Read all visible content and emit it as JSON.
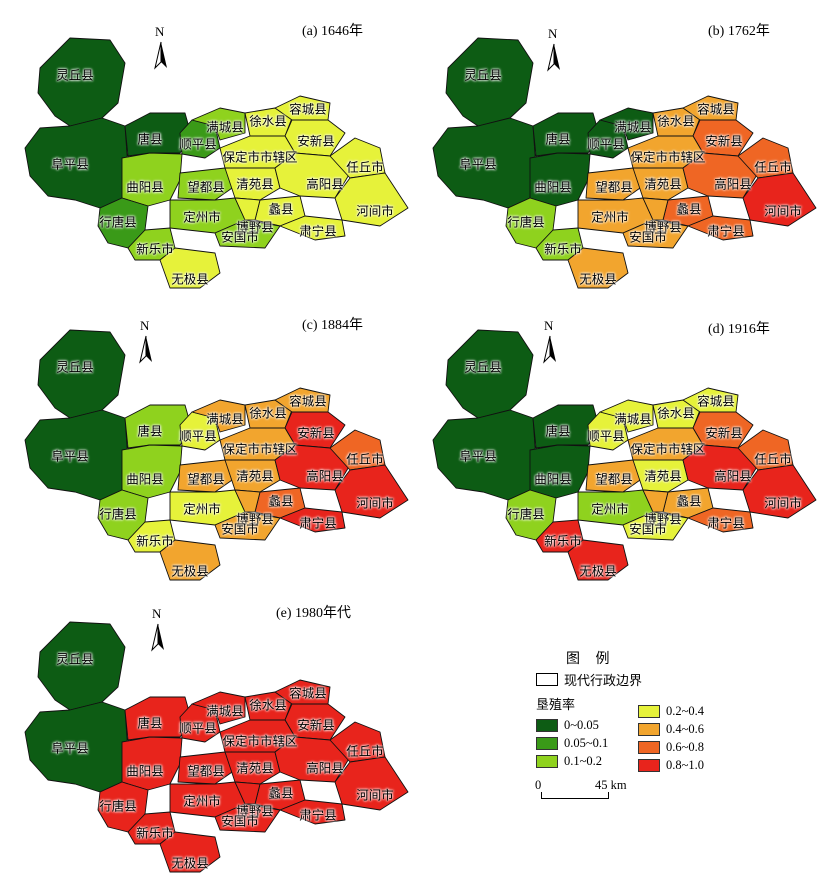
{
  "colors": {
    "c0": "#0d5c14",
    "c1": "#3a9a18",
    "c2": "#8fd21e",
    "c3": "#e6f23a",
    "c4": "#f2a52e",
    "c5": "#ef6624",
    "c6": "#e8241c"
  },
  "north_letter": "N",
  "panels": [
    {
      "title": "(a) 1646年",
      "regions": {
        "lingqiu": 0,
        "fuping": 0,
        "tang": 0,
        "quyang": 2,
        "xingtang": 1,
        "xinle": 2,
        "wuji": 3,
        "wangdu": 2,
        "dingzhou": 2,
        "shunping": 1,
        "mancheng": 2,
        "baoding": 3,
        "qingyuan": 3,
        "anguo": 2,
        "boye": 3,
        "lixian": 3,
        "xushui": 3,
        "rongcheng": 3,
        "anxin": 3,
        "gaoyang": 3,
        "renqiu": 3,
        "suning": 3,
        "hejian": 3
      }
    },
    {
      "title": "(b) 1762年",
      "regions": {
        "lingqiu": 0,
        "fuping": 0,
        "tang": 0,
        "quyang": 0,
        "xingtang": 2,
        "xinle": 2,
        "wuji": 4,
        "wangdu": 4,
        "dingzhou": 4,
        "shunping": 0,
        "mancheng": 0,
        "baoding": 4,
        "qingyuan": 4,
        "anguo": 4,
        "boye": 4,
        "lixian": 5,
        "xushui": 4,
        "rongcheng": 4,
        "anxin": 5,
        "gaoyang": 5,
        "renqiu": 5,
        "suning": 5,
        "hejian": 6
      }
    },
    {
      "title": "(c) 1884年",
      "regions": {
        "lingqiu": 0,
        "fuping": 0,
        "tang": 2,
        "quyang": 2,
        "xingtang": 2,
        "xinle": 3,
        "wuji": 4,
        "wangdu": 4,
        "dingzhou": 3,
        "shunping": 3,
        "mancheng": 4,
        "baoding": 4,
        "qingyuan": 4,
        "anguo": 4,
        "boye": 4,
        "lixian": 5,
        "xushui": 4,
        "rongcheng": 4,
        "anxin": 6,
        "gaoyang": 6,
        "renqiu": 5,
        "suning": 6,
        "hejian": 6
      }
    },
    {
      "title": "(d) 1916年",
      "regions": {
        "lingqiu": 0,
        "fuping": 0,
        "tang": 0,
        "quyang": 0,
        "xingtang": 2,
        "xinle": 6,
        "wuji": 6,
        "wangdu": 4,
        "dingzhou": 2,
        "shunping": 3,
        "mancheng": 3,
        "baoding": 4,
        "qingyuan": 3,
        "anguo": 3,
        "boye": 4,
        "lixian": 4,
        "xushui": 3,
        "rongcheng": 3,
        "anxin": 5,
        "gaoyang": 6,
        "renqiu": 5,
        "suning": 5,
        "hejian": 6
      }
    },
    {
      "title": "(e) 1980年代",
      "regions": {
        "lingqiu": 0,
        "fuping": 0,
        "tang": 6,
        "quyang": 6,
        "xingtang": 6,
        "xinle": 6,
        "wuji": 6,
        "wangdu": 6,
        "dingzhou": 6,
        "shunping": 6,
        "mancheng": 6,
        "baoding": 6,
        "qingyuan": 6,
        "anguo": 6,
        "boye": 6,
        "lixian": 6,
        "xushui": 6,
        "rongcheng": 6,
        "anxin": 6,
        "gaoyang": 6,
        "renqiu": 6,
        "suning": 6,
        "hejian": 6
      }
    }
  ],
  "counties": {
    "lingqiu": "灵丘县",
    "fuping": "阜平县",
    "tang": "唐县",
    "quyang": "曲阳县",
    "xingtang": "行唐县",
    "xinle": "新乐市",
    "wuji": "无极县",
    "wangdu": "望都县",
    "dingzhou": "定州市",
    "shunping": "顺平县",
    "mancheng": "满城县",
    "baoding": "保定市市辖区",
    "qingyuan": "清苑县",
    "anguo": "安国市",
    "boye": "博野县",
    "lixian": "蠡县",
    "xushui": "徐水县",
    "rongcheng": "容城县",
    "anxin": "安新县",
    "gaoyang": "高阳县",
    "renqiu": "任丘市",
    "suning": "肃宁县",
    "hejian": "河间市"
  },
  "legend": {
    "title": "图  例",
    "boundary": "现代行政边界",
    "rate_title": "垦殖率",
    "items": [
      {
        "label": "0~0.05",
        "color_key": "c0"
      },
      {
        "label": "0.05~0.1",
        "color_key": "c1"
      },
      {
        "label": "0.1~0.2",
        "color_key": "c2"
      },
      {
        "label": "0.2~0.4",
        "color_key": "c3"
      },
      {
        "label": "0.4~0.6",
        "color_key": "c4"
      },
      {
        "label": "0.6~0.8",
        "color_key": "c5"
      },
      {
        "label": "0.8~1.0",
        "color_key": "c6"
      }
    ]
  },
  "scale": {
    "zero": "0",
    "distance": "45 km"
  }
}
